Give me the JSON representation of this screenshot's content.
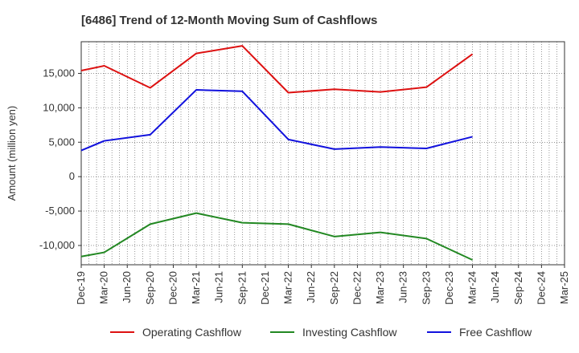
{
  "chart_data": {
    "type": "line",
    "title": "[6486]  Trend of 12-Month Moving Sum of Cashflows",
    "xlabel": "",
    "ylabel": "Amount (million yen)",
    "ylim": [
      -12800,
      19600
    ],
    "yticks": [
      15000,
      10000,
      5000,
      0,
      -5000,
      -10000
    ],
    "ytick_labels": [
      "15,000",
      "10,000",
      "5,000",
      "0",
      "-5,000",
      "-10,000"
    ],
    "categories": [
      "Dec-19",
      "Mar-20",
      "Jun-20",
      "Sep-20",
      "Dec-20",
      "Mar-21",
      "Jun-21",
      "Sep-21",
      "Dec-21",
      "Mar-22",
      "Jun-22",
      "Sep-22",
      "Dec-22",
      "Mar-23",
      "Jun-23",
      "Sep-23",
      "Dec-23",
      "Mar-24",
      "Jun-24",
      "Sep-24",
      "Dec-24",
      "Mar-25"
    ],
    "grid": true,
    "legend_position": "bottom",
    "series": [
      {
        "name": "Operating Cashflow",
        "color": "#dd1111",
        "values": [
          15400,
          16100,
          null,
          12900,
          null,
          17900,
          null,
          19000,
          null,
          12200,
          null,
          12700,
          null,
          12300,
          null,
          13000,
          null,
          17800,
          null,
          null,
          null,
          null
        ]
      },
      {
        "name": "Investing Cashflow",
        "color": "#228822",
        "values": [
          -11600,
          -11000,
          null,
          -6900,
          null,
          -5300,
          null,
          -6700,
          null,
          -6900,
          null,
          -8700,
          null,
          -8100,
          null,
          -9000,
          null,
          -12100,
          null,
          null,
          null,
          null
        ]
      },
      {
        "name": "Free Cashflow",
        "color": "#1111dd",
        "values": [
          3800,
          5200,
          null,
          6100,
          null,
          12600,
          null,
          12400,
          null,
          5400,
          null,
          4000,
          null,
          4300,
          null,
          4100,
          null,
          5800,
          null,
          null,
          null,
          null
        ]
      }
    ]
  }
}
